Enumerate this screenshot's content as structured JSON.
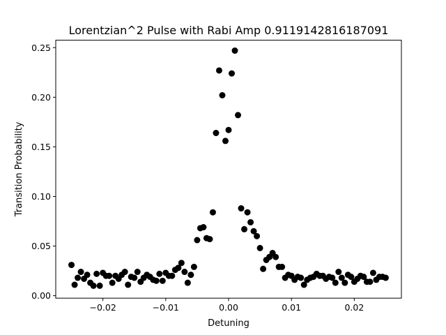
{
  "chart_data": {
    "type": "scatter",
    "title": "Lorentzian^2 Pulse with Rabi Amp 0.9119142816187091",
    "xlabel": "Detuning",
    "ylabel": "Transition Probability",
    "xlim": [
      -0.0275,
      0.0275
    ],
    "ylim": [
      -0.0025,
      0.2575
    ],
    "xticks": [
      -0.02,
      -0.01,
      0.0,
      0.01,
      0.02
    ],
    "xtick_labels": [
      "−0.02",
      "−0.01",
      "0.00",
      "0.01",
      "0.02"
    ],
    "yticks": [
      0.0,
      0.05,
      0.1,
      0.15,
      0.2,
      0.25
    ],
    "ytick_labels": [
      "0.00",
      "0.05",
      "0.10",
      "0.15",
      "0.20",
      "0.25"
    ],
    "marker_color": "#000000",
    "grid": false,
    "legend": "none",
    "x": [
      -0.025,
      -0.0245,
      -0.024,
      -0.0235,
      -0.023,
      -0.0225,
      -0.022,
      -0.0215,
      -0.021,
      -0.0205,
      -0.02,
      -0.0195,
      -0.019,
      -0.0185,
      -0.018,
      -0.0175,
      -0.017,
      -0.0165,
      -0.016,
      -0.0155,
      -0.015,
      -0.0145,
      -0.014,
      -0.0135,
      -0.013,
      -0.0125,
      -0.012,
      -0.0115,
      -0.011,
      -0.0105,
      -0.01,
      -0.0095,
      -0.009,
      -0.0085,
      -0.008,
      -0.0075,
      -0.007,
      -0.0065,
      -0.006,
      -0.0055,
      -0.005,
      -0.0045,
      -0.004,
      -0.0035,
      -0.003,
      -0.0025,
      -0.002,
      -0.0015,
      -0.001,
      -0.0005,
      0.0,
      0.0005,
      0.001,
      0.0015,
      0.002,
      0.0025,
      0.003,
      0.0035,
      0.004,
      0.0045,
      0.005,
      0.0055,
      0.006,
      0.0065,
      0.007,
      0.0075,
      0.008,
      0.0085,
      0.009,
      0.0095,
      0.01,
      0.0105,
      0.011,
      0.0115,
      0.012,
      0.0125,
      0.013,
      0.0135,
      0.014,
      0.0145,
      0.015,
      0.0155,
      0.016,
      0.0165,
      0.017,
      0.0175,
      0.018,
      0.0185,
      0.019,
      0.0195,
      0.02,
      0.0205,
      0.021,
      0.0215,
      0.022,
      0.0225,
      0.023,
      0.0235,
      0.024,
      0.0245,
      0.025
    ],
    "y": [
      0.031,
      0.011,
      0.018,
      0.024,
      0.017,
      0.021,
      0.013,
      0.01,
      0.022,
      0.01,
      0.023,
      0.02,
      0.02,
      0.013,
      0.02,
      0.017,
      0.021,
      0.024,
      0.011,
      0.019,
      0.018,
      0.024,
      0.014,
      0.018,
      0.021,
      0.019,
      0.016,
      0.015,
      0.022,
      0.015,
      0.023,
      0.02,
      0.02,
      0.026,
      0.028,
      0.033,
      0.024,
      0.013,
      0.021,
      0.029,
      0.056,
      0.068,
      0.069,
      0.058,
      0.057,
      0.084,
      0.164,
      0.227,
      0.202,
      0.156,
      0.167,
      0.224,
      0.247,
      0.182,
      0.088,
      0.067,
      0.084,
      0.074,
      0.065,
      0.06,
      0.048,
      0.027,
      0.036,
      0.039,
      0.043,
      0.039,
      0.029,
      0.029,
      0.018,
      0.021,
      0.02,
      0.016,
      0.019,
      0.018,
      0.011,
      0.016,
      0.018,
      0.019,
      0.022,
      0.02,
      0.02,
      0.017,
      0.019,
      0.018,
      0.013,
      0.024,
      0.018,
      0.013,
      0.021,
      0.019,
      0.014,
      0.017,
      0.02,
      0.019,
      0.014,
      0.014,
      0.023,
      0.016,
      0.019,
      0.019,
      0.018
    ]
  }
}
